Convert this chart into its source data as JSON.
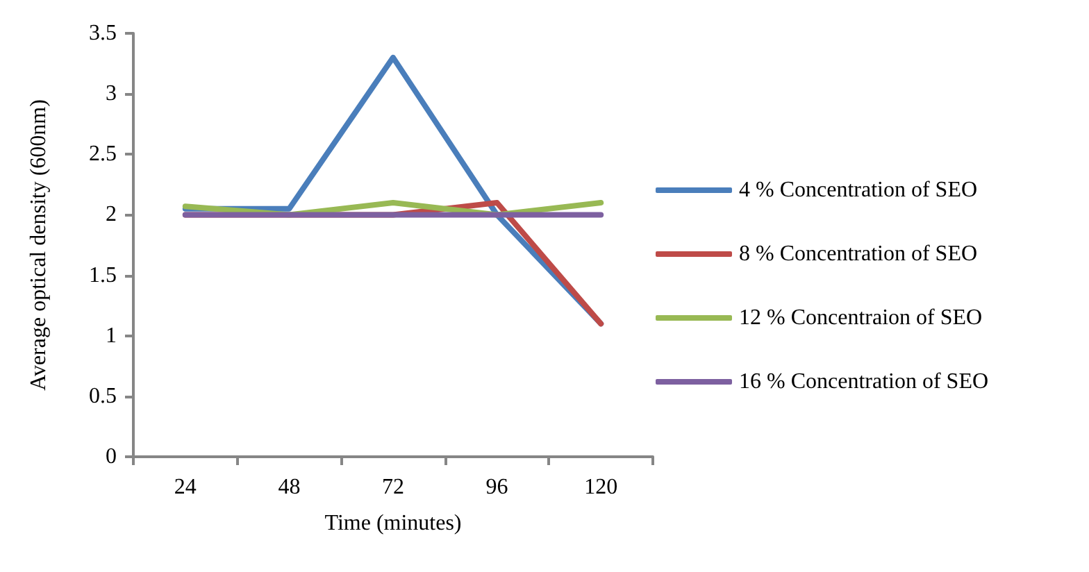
{
  "chart_data": {
    "type": "line",
    "xlabel": "Time (minutes)",
    "ylabel": "Average optical density (600nm)",
    "categories": [
      "24",
      "48",
      "72",
      "96",
      "120"
    ],
    "series": [
      {
        "name": "4 % Concentration of SEO",
        "color": "#4a7ebb",
        "values": [
          2.05,
          2.05,
          3.3,
          2.0,
          1.1
        ]
      },
      {
        "name": "8 % Concentration of SEO",
        "color": "#be4b48",
        "values": [
          2.0,
          2.0,
          2.0,
          2.1,
          1.1
        ]
      },
      {
        "name": "12 % Concentraion of SEO",
        "color": "#98b954",
        "values": [
          2.07,
          2.0,
          2.1,
          2.0,
          2.1
        ]
      },
      {
        "name": "16 % Concentration of SEO",
        "color": "#7d60a0",
        "values": [
          2.0,
          2.0,
          2.0,
          2.0,
          2.0
        ]
      }
    ],
    "ylim": [
      0,
      3.5
    ],
    "yticks": [
      0,
      0.5,
      1,
      1.5,
      2,
      2.5,
      3,
      3.5
    ],
    "grid": false,
    "legend": "right",
    "marker": "none",
    "line_style": "solid"
  }
}
